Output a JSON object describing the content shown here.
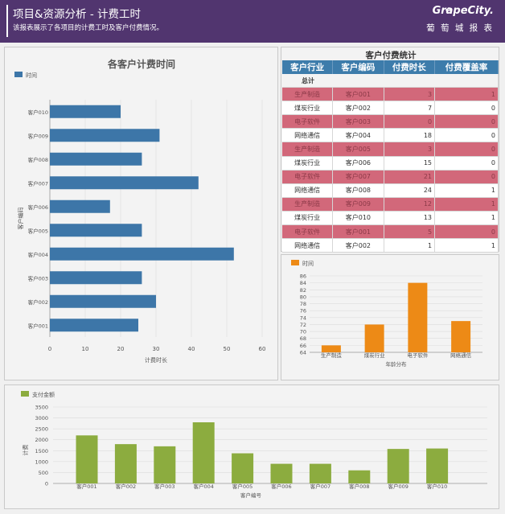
{
  "header": {
    "title": "项目&资源分析 - 计费工时",
    "subtitle": "该报表展示了各项目的计费工时及客户付费情况。",
    "logo": "GrapeCity.",
    "logo_cn": "葡 萄 城 报 表"
  },
  "colors": {
    "header": "#51356f",
    "bar": "#3d76a8",
    "orange": "#ed8a16",
    "green": "#8cac3f",
    "red_row": "#d2687a"
  },
  "bar_chart": {
    "title": "各客户计费时间"
  },
  "table": {
    "title": "客户付费统计",
    "columns": [
      "客户行业",
      "客户编码",
      "付费时长",
      "付费覆盖率"
    ],
    "total_label": "总计",
    "rows": [
      {
        "industry": "生产制造",
        "code": "客户001",
        "hours": "3",
        "rate": "1",
        "style": "red"
      },
      {
        "industry": "煤炭行业",
        "code": "客户002",
        "hours": "7",
        "rate": "0",
        "style": "white"
      },
      {
        "industry": "电子软件",
        "code": "客户003",
        "hours": "0",
        "rate": "0",
        "style": "red"
      },
      {
        "industry": "网络通信",
        "code": "客户004",
        "hours": "18",
        "rate": "0",
        "style": "white"
      },
      {
        "industry": "生产制造",
        "code": "客户005",
        "hours": "3",
        "rate": "0",
        "style": "red"
      },
      {
        "industry": "煤炭行业",
        "code": "客户006",
        "hours": "15",
        "rate": "0",
        "style": "white"
      },
      {
        "industry": "电子软件",
        "code": "客户007",
        "hours": "21",
        "rate": "0",
        "style": "red"
      },
      {
        "industry": "网络通信",
        "code": "客户008",
        "hours": "24",
        "rate": "1",
        "style": "white"
      },
      {
        "industry": "生产制造",
        "code": "客户009",
        "hours": "12",
        "rate": "1",
        "style": "red"
      },
      {
        "industry": "煤炭行业",
        "code": "客户010",
        "hours": "13",
        "rate": "1",
        "style": "white"
      },
      {
        "industry": "电子软件",
        "code": "客户001",
        "hours": "5",
        "rate": "0",
        "style": "red"
      },
      {
        "industry": "网络通信",
        "code": "客户002",
        "hours": "1",
        "rate": "1",
        "style": "white"
      }
    ]
  },
  "chart_data": [
    {
      "type": "bar",
      "orientation": "horizontal",
      "title": "各客户计费时间",
      "legend": [
        "时间"
      ],
      "legend_position": "top-left",
      "xlabel": "计费时长",
      "ylabel": "客户编码",
      "xlim": [
        0,
        60
      ],
      "xticks": [
        0,
        10,
        20,
        30,
        40,
        50,
        60
      ],
      "categories": [
        "客户001",
        "客户002",
        "客户003",
        "客户004",
        "客户005",
        "客户006",
        "客户007",
        "客户008",
        "客户009",
        "客户010"
      ],
      "series": [
        {
          "name": "时间",
          "values": [
            25,
            30,
            26,
            52,
            26,
            17,
            42,
            26,
            31,
            20
          ]
        }
      ]
    },
    {
      "type": "bar",
      "legend": [
        "时间"
      ],
      "legend_position": "top-left",
      "xlabel": "年龄分布",
      "ylim": [
        64,
        86
      ],
      "yticks": [
        64,
        66,
        68,
        70,
        72,
        74,
        76,
        78,
        80,
        82,
        84,
        86
      ],
      "categories": [
        "生产制造",
        "煤炭行业",
        "电子软件",
        "网络通信"
      ],
      "series": [
        {
          "name": "时间",
          "values": [
            66,
            72,
            84,
            73
          ]
        }
      ]
    },
    {
      "type": "bar",
      "legend": [
        "支付金额"
      ],
      "legend_position": "top-left",
      "xlabel": "客户编号",
      "ylabel": "计费",
      "ylim": [
        0,
        3500
      ],
      "yticks": [
        0,
        500,
        1000,
        1500,
        2000,
        2500,
        3000,
        3500
      ],
      "categories": [
        "客户001",
        "客户002",
        "客户003",
        "客户004",
        "客户005",
        "客户006",
        "客户007",
        "客户008",
        "客户009",
        "客户010"
      ],
      "series": [
        {
          "name": "支付金额",
          "values": [
            2200,
            1800,
            1700,
            2800,
            1380,
            900,
            900,
            600,
            1580,
            1600
          ]
        }
      ]
    }
  ]
}
